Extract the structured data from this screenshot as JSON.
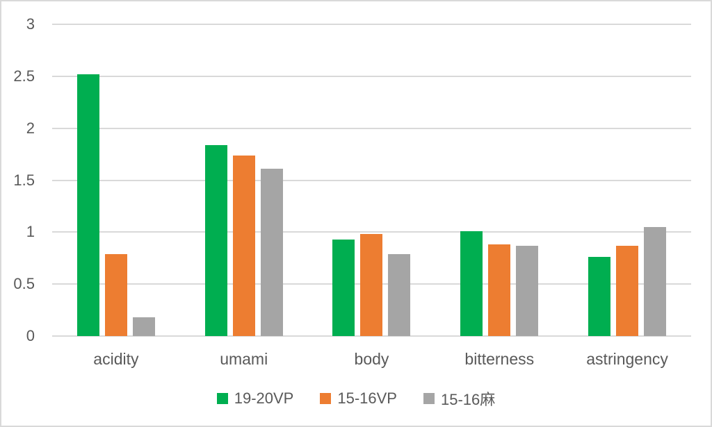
{
  "chart_data": {
    "type": "bar",
    "title": "",
    "xlabel": "",
    "ylabel": "",
    "categories": [
      "acidity",
      "umami",
      "body",
      "bitterness",
      "astringency"
    ],
    "series": [
      {
        "name": "19-20VP",
        "color": "#00AE50",
        "values": [
          2.52,
          1.84,
          0.93,
          1.01,
          0.76
        ]
      },
      {
        "name": "15-16VP",
        "color": "#ED7D31",
        "values": [
          0.79,
          1.74,
          0.98,
          0.88,
          0.87
        ]
      },
      {
        "name": "15-16麻",
        "color": "#A5A5A5",
        "values": [
          0.18,
          1.61,
          0.79,
          0.87,
          1.05
        ]
      }
    ],
    "ylim": [
      0,
      3
    ],
    "yticks": [
      0,
      0.5,
      1,
      1.5,
      2,
      2.5,
      3
    ],
    "ytick_labels": [
      "0",
      "0.5",
      "1",
      "1.5",
      "2",
      "2.5",
      "3"
    ],
    "grid": true,
    "legend_position": "bottom"
  },
  "colors": {
    "background": "#FFFFFF",
    "frame_border": "#D9D9D9",
    "gridline": "#D9D9D9",
    "axis_text": "#595959"
  }
}
